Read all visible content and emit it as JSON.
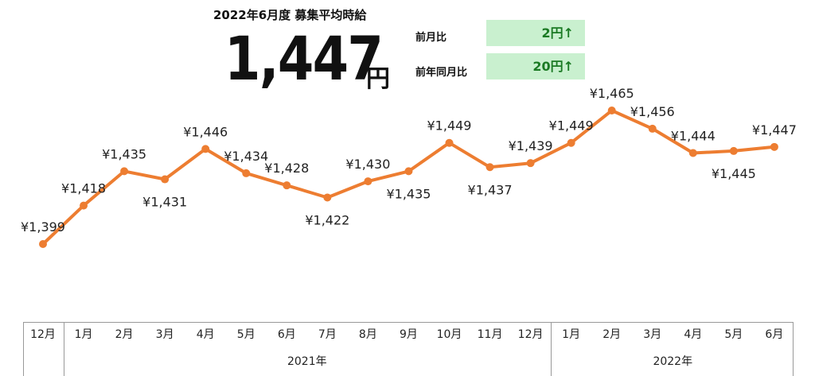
{
  "header": {
    "title": "2022年6月度 募集平均時給",
    "value": "1,447",
    "unit": "円",
    "comparisons": [
      {
        "label": "前月比",
        "value": "2円↑"
      },
      {
        "label": "前年同月比",
        "value": "20円↑"
      }
    ]
  },
  "colors": {
    "line": "#ed7d31",
    "up_box_bg": "#c9f0cf",
    "up_box_text": "#1b7a24"
  },
  "chart_data": {
    "type": "line",
    "categories": [
      "12月",
      "1月",
      "2月",
      "3月",
      "4月",
      "5月",
      "6月",
      "7月",
      "8月",
      "9月",
      "10月",
      "11月",
      "12月",
      "1月",
      "2月",
      "3月",
      "4月",
      "5月",
      "6月"
    ],
    "year_groups": [
      {
        "label": "",
        "start": 0,
        "end": 0
      },
      {
        "label": "2021年",
        "start": 1,
        "end": 12
      },
      {
        "label": "2022年",
        "start": 13,
        "end": 18
      }
    ],
    "series": [
      {
        "values": [
          1399,
          1418,
          1435,
          1431,
          1446,
          1434,
          1428,
          1422,
          1430,
          1435,
          1449,
          1437,
          1439,
          1449,
          1465,
          1456,
          1444,
          1445,
          1447
        ],
        "data_labels": [
          "¥1,399",
          "¥1,418",
          "¥1,435",
          "¥1,431",
          "¥1,446",
          "¥1,434",
          "¥1,428",
          "¥1,422",
          "¥1,430",
          "¥1,435",
          "¥1,449",
          "¥1,437",
          "¥1,439",
          "¥1,449",
          "¥1,465",
          "¥1,456",
          "¥1,444",
          "¥1,445",
          "¥1,447"
        ],
        "label_positions": [
          "above",
          "above",
          "above",
          "below",
          "above",
          "above",
          "above",
          "below",
          "above",
          "below",
          "above",
          "below",
          "above",
          "above",
          "above",
          "above",
          "above",
          "below",
          "above"
        ]
      }
    ],
    "grid": false,
    "legend": "none"
  }
}
